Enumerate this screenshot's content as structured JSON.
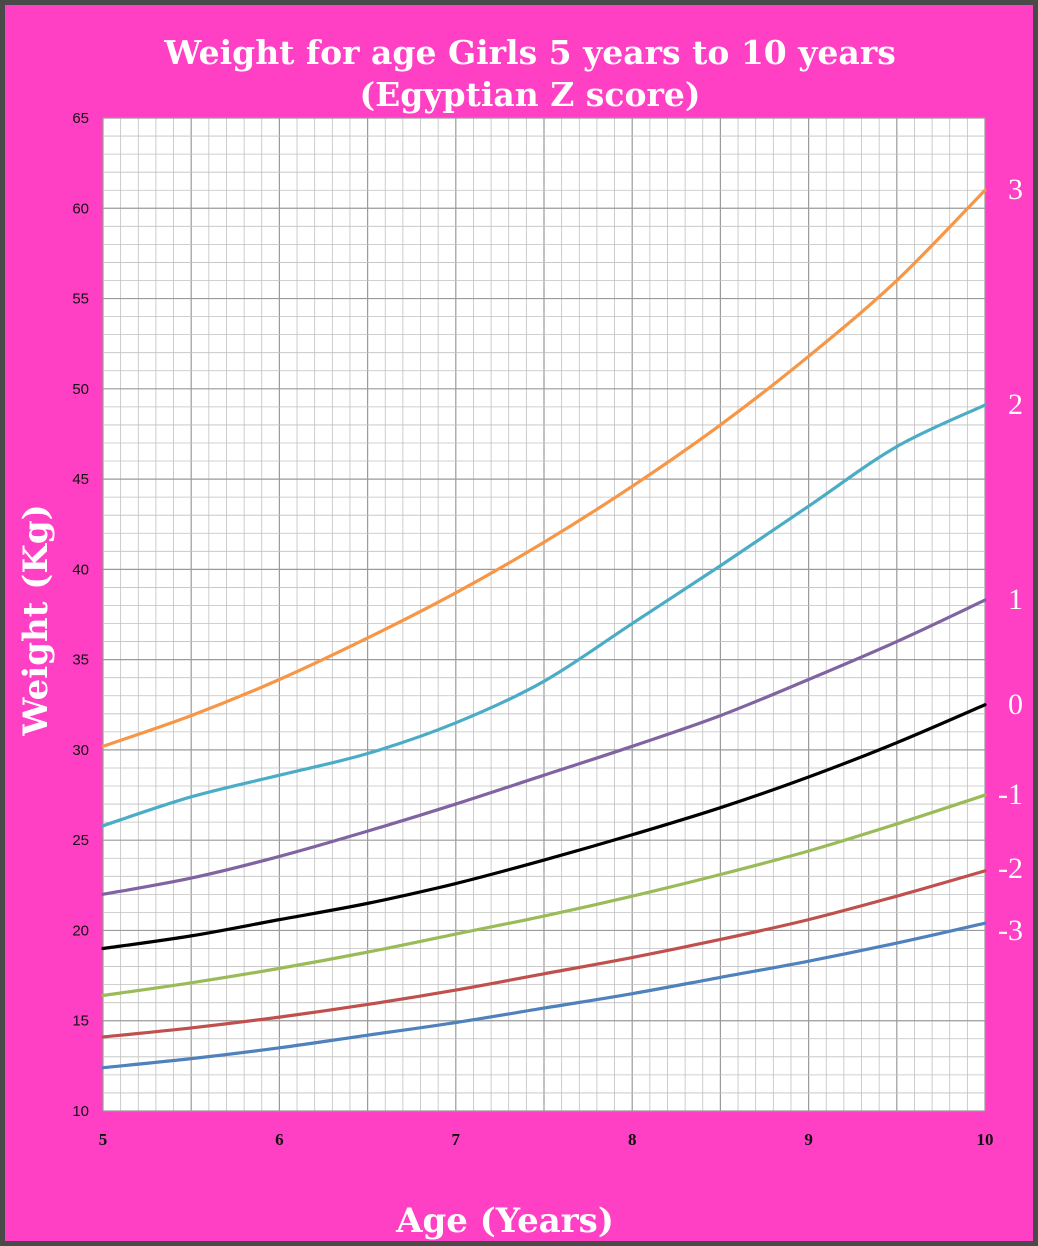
{
  "colors": {
    "background": "#ff3fc4",
    "plot_background": "#ffffff",
    "minor_grid": "#c0c0c0",
    "major_grid": "#9a9a9a",
    "text_light": "#ffffff",
    "tick_text": "#111111"
  },
  "chart_data": {
    "type": "line",
    "title": "Weight for age Girls 5 years to 10 years",
    "subtitle": "(Egyptian Z score)",
    "xlabel": "Age (Years)",
    "ylabel": "Weight (Kg)",
    "xlim": [
      5,
      10
    ],
    "ylim": [
      10,
      65
    ],
    "x_ticks": [
      "5",
      "6",
      "7",
      "8",
      "9",
      "10"
    ],
    "y_ticks": [
      "10",
      "15",
      "20",
      "25",
      "30",
      "35",
      "40",
      "45",
      "50",
      "55",
      "60",
      "65"
    ],
    "grid": true,
    "x": [
      5.0,
      5.5,
      6.0,
      6.5,
      7.0,
      7.5,
      8.0,
      8.5,
      9.0,
      9.5,
      10.0
    ],
    "series": [
      {
        "name": "3",
        "color": "#f79646",
        "values": [
          30.2,
          31.9,
          33.9,
          36.2,
          38.7,
          41.5,
          44.6,
          48.0,
          51.8,
          56.0,
          61.0
        ]
      },
      {
        "name": "2",
        "color": "#4bacc6",
        "values": [
          25.8,
          27.4,
          28.6,
          29.8,
          31.5,
          33.8,
          37.0,
          40.2,
          43.5,
          46.8,
          49.1
        ]
      },
      {
        "name": "1",
        "color": "#8064a2",
        "values": [
          22.0,
          22.9,
          24.1,
          25.5,
          27.0,
          28.6,
          30.2,
          31.9,
          33.9,
          36.0,
          38.3
        ]
      },
      {
        "name": "0",
        "color": "#000000",
        "values": [
          19.0,
          19.7,
          20.6,
          21.5,
          22.6,
          23.9,
          25.3,
          26.8,
          28.5,
          30.4,
          32.5
        ]
      },
      {
        "name": "-1",
        "color": "#9bbb59",
        "values": [
          16.4,
          17.1,
          17.9,
          18.8,
          19.8,
          20.8,
          21.9,
          23.1,
          24.4,
          25.9,
          27.5
        ]
      },
      {
        "name": "-2",
        "color": "#c0504d",
        "values": [
          14.1,
          14.6,
          15.2,
          15.9,
          16.7,
          17.6,
          18.5,
          19.5,
          20.6,
          21.9,
          23.3
        ]
      },
      {
        "name": "-3",
        "color": "#4f81bd",
        "values": [
          12.4,
          12.9,
          13.5,
          14.2,
          14.9,
          15.7,
          16.5,
          17.4,
          18.3,
          19.3,
          20.4
        ]
      }
    ]
  }
}
